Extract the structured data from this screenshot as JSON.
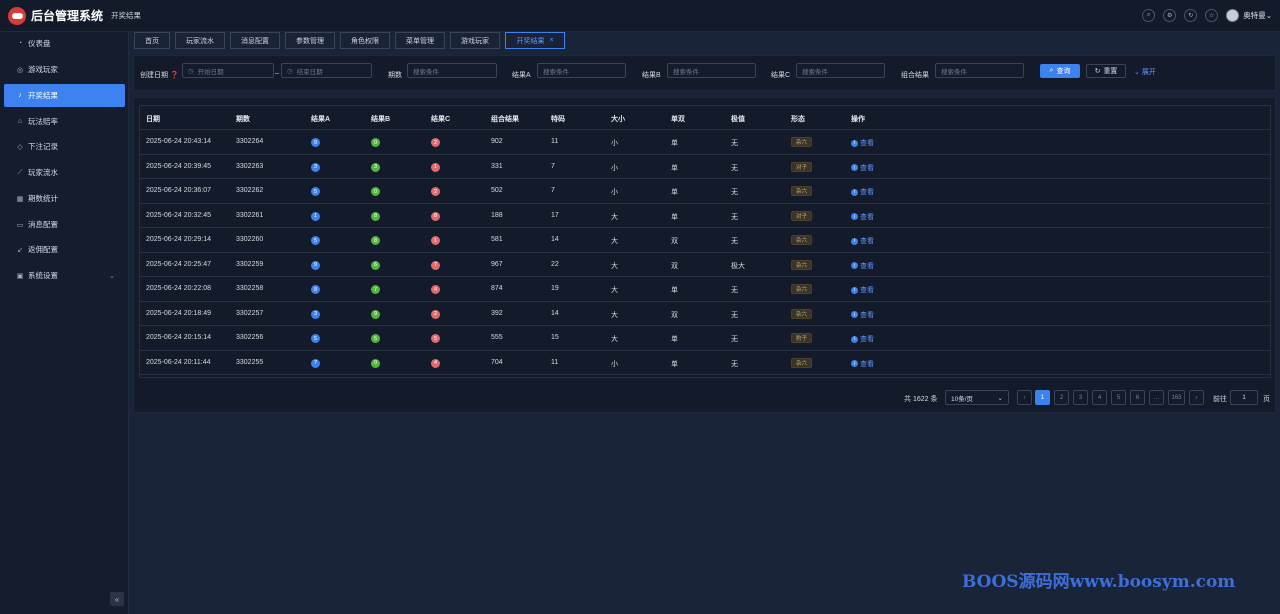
{
  "header": {
    "app_title": "后台管理系统",
    "breadcrumb": "开奖结果",
    "user_name": "奥特曼"
  },
  "sidebar": {
    "items": [
      {
        "label": "仪表盘",
        "icon": "dashboard-icon"
      },
      {
        "label": "游戏玩家",
        "icon": "globe-icon"
      },
      {
        "label": "开奖结果",
        "icon": "bell-icon",
        "active": true
      },
      {
        "label": "玩法赔率",
        "icon": "tag-icon"
      },
      {
        "label": "下注记录",
        "icon": "diamond-icon"
      },
      {
        "label": "玩家流水",
        "icon": "trend-icon"
      },
      {
        "label": "期数统计",
        "icon": "calendar-icon"
      },
      {
        "label": "消息配置",
        "icon": "message-icon"
      },
      {
        "label": "返佣配置",
        "icon": "arrow-icon"
      },
      {
        "label": "系统设置",
        "icon": "settings-icon",
        "has_children": true
      }
    ]
  },
  "tabs": [
    {
      "label": "首页"
    },
    {
      "label": "玩家流水"
    },
    {
      "label": "消息配置"
    },
    {
      "label": "参数管理"
    },
    {
      "label": "角色权限"
    },
    {
      "label": "菜单管理"
    },
    {
      "label": "游戏玩家"
    },
    {
      "label": "开奖结果",
      "active": true,
      "close": "×"
    }
  ],
  "filter": {
    "created_label": "创建日期",
    "start_placeholder": "开始日期",
    "range_sep": "–",
    "end_placeholder": "结束日期",
    "period_label": "期数",
    "result_a_label": "结果A",
    "result_b_label": "结果B",
    "result_c_label": "结果C",
    "combo_label": "组合结果",
    "search_placeholder": "搜索条件",
    "query_label": "查询",
    "reset_label": "重置",
    "expand_label": "展开"
  },
  "table": {
    "columns": [
      "日期",
      "期数",
      "结果A",
      "结果B",
      "结果C",
      "组合结果",
      "特码",
      "大小",
      "单双",
      "极值",
      "形态",
      "操作"
    ],
    "view_label": "查看",
    "rows": [
      {
        "date": "2025-06-24 20:43:14",
        "period": "3302264",
        "a": "9",
        "b": "0",
        "c": "2",
        "combo": "902",
        "special": "11",
        "size": "小",
        "parity": "单",
        "extreme": "无",
        "shape": "杂六"
      },
      {
        "date": "2025-06-24 20:39:45",
        "period": "3302263",
        "a": "3",
        "b": "3",
        "c": "1",
        "combo": "331",
        "special": "7",
        "size": "小",
        "parity": "单",
        "extreme": "无",
        "shape": "对子"
      },
      {
        "date": "2025-06-24 20:36:07",
        "period": "3302262",
        "a": "5",
        "b": "0",
        "c": "2",
        "combo": "502",
        "special": "7",
        "size": "小",
        "parity": "单",
        "extreme": "无",
        "shape": "杂六"
      },
      {
        "date": "2025-06-24 20:32:45",
        "period": "3302261",
        "a": "1",
        "b": "8",
        "c": "8",
        "combo": "188",
        "special": "17",
        "size": "大",
        "parity": "单",
        "extreme": "无",
        "shape": "对子"
      },
      {
        "date": "2025-06-24 20:29:14",
        "period": "3302260",
        "a": "5",
        "b": "8",
        "c": "1",
        "combo": "581",
        "special": "14",
        "size": "大",
        "parity": "双",
        "extreme": "无",
        "shape": "杂六"
      },
      {
        "date": "2025-06-24 20:25:47",
        "period": "3302259",
        "a": "9",
        "b": "6",
        "c": "7",
        "combo": "967",
        "special": "22",
        "size": "大",
        "parity": "双",
        "extreme": "极大",
        "shape": "杂六"
      },
      {
        "date": "2025-06-24 20:22:08",
        "period": "3302258",
        "a": "8",
        "b": "7",
        "c": "4",
        "combo": "874",
        "special": "19",
        "size": "大",
        "parity": "单",
        "extreme": "无",
        "shape": "杂六"
      },
      {
        "date": "2025-06-24 20:18:49",
        "period": "3302257",
        "a": "3",
        "b": "9",
        "c": "2",
        "combo": "392",
        "special": "14",
        "size": "大",
        "parity": "双",
        "extreme": "无",
        "shape": "杂六"
      },
      {
        "date": "2025-06-24 20:15:14",
        "period": "3302256",
        "a": "5",
        "b": "5",
        "c": "5",
        "combo": "555",
        "special": "15",
        "size": "大",
        "parity": "单",
        "extreme": "无",
        "shape": "豹子"
      },
      {
        "date": "2025-06-24 20:11:44",
        "period": "3302255",
        "a": "7",
        "b": "0",
        "c": "4",
        "combo": "704",
        "special": "11",
        "size": "小",
        "parity": "单",
        "extreme": "无",
        "shape": "杂六"
      }
    ]
  },
  "pagination": {
    "total_text": "共 1622 条",
    "page_size": "10条/页",
    "prev": "‹",
    "next": "›",
    "pages": [
      "1",
      "2",
      "3",
      "4",
      "5",
      "6",
      "…",
      "163"
    ],
    "current_page": "1",
    "goto_label": "前往",
    "goto_value": "1",
    "page_suffix": "页"
  },
  "watermark": "BOOS源码网www.boosym.com",
  "colors": {
    "accent": "#3d83f0",
    "ball_a": "#3d83f0",
    "ball_b": "#52b83d",
    "ball_c": "#e36a6a"
  }
}
